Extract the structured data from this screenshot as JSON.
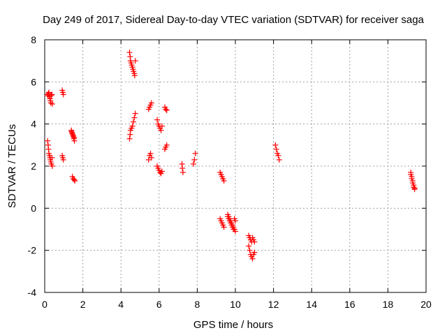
{
  "chart_data": {
    "type": "scatter",
    "title": "Day 249 of 2017, Sidereal Day-to-day VTEC variation (SDTVAR) for receiver saga",
    "xlabel": "GPS time / hours",
    "ylabel": "SDTVAR / TECUs",
    "xlim": [
      0,
      20
    ],
    "ylim": [
      -4,
      8
    ],
    "xticks": [
      0,
      2,
      4,
      6,
      8,
      10,
      12,
      14,
      16,
      18,
      20
    ],
    "yticks": [
      -4,
      -2,
      0,
      2,
      4,
      6,
      8
    ],
    "grid": true,
    "marker": "+",
    "color": "#ff0000",
    "series": [
      {
        "x": [
          0.15,
          0.18,
          0.2,
          0.22,
          0.25,
          0.28,
          0.3,
          0.32,
          0.35,
          0.38,
          0.4,
          0.15,
          0.18,
          0.2,
          0.22,
          0.25,
          0.28,
          0.3,
          0.32,
          0.35,
          0.38,
          0.4,
          0.92,
          0.95,
          0.98,
          0.92,
          0.95,
          0.98,
          1.4,
          1.43,
          1.46,
          1.5,
          1.53,
          1.56,
          1.4,
          1.45,
          1.5,
          1.55,
          1.45,
          1.5,
          1.55,
          1.58,
          4.45,
          4.48,
          4.5,
          4.53,
          4.56,
          4.6,
          4.63,
          4.66,
          4.7,
          4.72,
          4.75,
          4.45,
          4.48,
          4.5,
          4.55,
          4.6,
          4.65,
          4.7,
          4.75,
          5.45,
          5.5,
          5.55,
          5.6,
          5.45,
          5.5,
          5.55,
          5.6,
          5.9,
          5.95,
          6.0,
          6.05,
          6.1,
          6.15,
          5.9,
          5.95,
          6.0,
          6.05,
          6.1,
          6.15,
          6.3,
          6.35,
          6.4,
          6.3,
          6.35,
          6.4,
          7.2,
          7.22,
          7.25,
          7.8,
          7.85,
          7.9,
          9.2,
          9.25,
          9.3,
          9.35,
          9.4,
          9.2,
          9.25,
          9.3,
          9.35,
          9.4,
          9.6,
          9.65,
          9.7,
          9.75,
          9.8,
          9.85,
          9.9,
          9.95,
          10.0,
          9.6,
          9.65,
          9.7,
          9.75,
          9.8,
          9.85,
          9.9,
          9.95,
          10.0,
          10.7,
          10.75,
          10.8,
          10.85,
          10.9,
          10.95,
          11.0,
          10.7,
          10.75,
          10.8,
          10.85,
          10.9,
          10.95,
          11.0,
          12.1,
          12.15,
          12.2,
          12.25,
          12.3,
          19.2,
          19.25,
          19.3,
          19.35,
          19.4,
          19.2,
          19.25,
          19.3,
          19.35,
          19.4
        ],
        "y": [
          5.4,
          5.35,
          5.45,
          5.5,
          5.3,
          5.2,
          5.1,
          5.0,
          5.35,
          5.4,
          4.95,
          3.2,
          3.0,
          2.8,
          2.6,
          2.5,
          2.4,
          2.3,
          2.2,
          2.1,
          2.4,
          2.0,
          5.6,
          5.5,
          5.4,
          2.5,
          2.4,
          2.3,
          3.7,
          3.6,
          3.5,
          3.4,
          3.3,
          3.2,
          3.65,
          3.55,
          3.45,
          3.35,
          1.5,
          1.4,
          1.35,
          1.3,
          7.4,
          7.2,
          7.0,
          6.9,
          6.8,
          6.7,
          6.6,
          6.5,
          6.4,
          6.3,
          7.0,
          3.3,
          3.5,
          3.7,
          3.8,
          3.9,
          4.1,
          4.3,
          4.5,
          4.7,
          4.8,
          4.9,
          5.0,
          2.3,
          2.5,
          2.6,
          2.4,
          4.2,
          4.0,
          3.9,
          3.8,
          3.7,
          3.9,
          2.0,
          1.9,
          1.8,
          1.7,
          1.65,
          1.75,
          4.8,
          4.7,
          4.65,
          2.8,
          2.9,
          3.0,
          2.1,
          1.9,
          1.7,
          2.1,
          2.3,
          2.6,
          -0.5,
          -0.6,
          -0.7,
          -0.8,
          -0.9,
          1.7,
          1.6,
          1.5,
          1.4,
          1.3,
          -0.3,
          -0.4,
          -0.5,
          -0.6,
          -0.7,
          -0.8,
          -0.9,
          -1.0,
          -1.1,
          -0.4,
          -0.5,
          -0.6,
          -0.7,
          -0.8,
          -0.9,
          -1.0,
          -0.5,
          -0.6,
          -1.8,
          -2.0,
          -2.2,
          -2.3,
          -2.4,
          -2.2,
          -2.1,
          -1.3,
          -1.4,
          -1.5,
          -1.6,
          -1.4,
          -1.5,
          -1.6,
          3.0,
          2.8,
          2.6,
          2.5,
          2.3,
          1.6,
          1.4,
          1.2,
          1.0,
          0.9,
          1.7,
          1.5,
          1.3,
          1.1,
          0.95
        ]
      }
    ]
  }
}
